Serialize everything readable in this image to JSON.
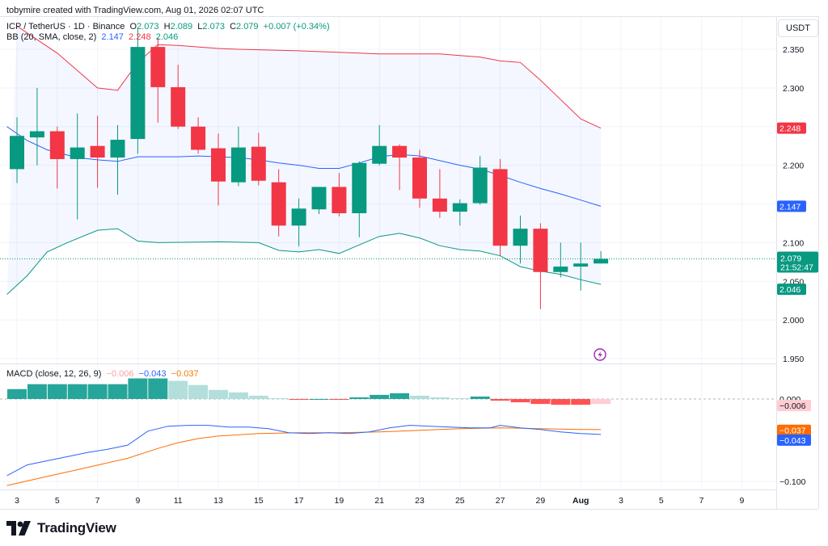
{
  "credit": "tobymire created with TradingView.com, Aug 01, 2026 02:07 UTC",
  "legend": {
    "symbol": "ICP / TetherUS · 1D · Binance",
    "o_label": "O",
    "o": "2.073",
    "h_label": "H",
    "h": "2.089",
    "l_label": "L",
    "l": "2.073",
    "c_label": "C",
    "c": "2.079",
    "change": "+0.007 (+0.34%)",
    "bb_label": "BB (20, SMA, close, 2)",
    "bb_basis": "2.147",
    "bb_upper": "2.248",
    "bb_lower": "2.046",
    "macd_label": "MACD (close, 12, 26, 9)",
    "macd_hist": "−0.006",
    "macd_line": "−0.043",
    "macd_signal": "−0.037"
  },
  "currency": "USDT",
  "brand": "TradingView",
  "icons": {
    "logo": "tradingview-logo-icon",
    "event": "lightning-event-icon"
  },
  "colors": {
    "up": "#089981",
    "down": "#f23645",
    "bb_basis": "#2962ff",
    "bb_upper": "#f23645",
    "bb_lower": "#089981",
    "bb_fill": "#2962ff",
    "macd": "#2962ff",
    "signal": "#ff6d00",
    "hist_up_strong": "#26a69a",
    "hist_up_weak": "#b2dfdb",
    "hist_down_strong": "#ff5252",
    "hist_down_weak": "#ffcdd2",
    "event": "#9c27b0"
  },
  "chart_data": [
    {
      "type": "candlestick",
      "title": "ICP / TetherUS · 1D · Binance",
      "x_ticks": [
        "3",
        "5",
        "7",
        "9",
        "11",
        "13",
        "15",
        "17",
        "19",
        "21",
        "23",
        "25",
        "27",
        "29",
        "Aug",
        "3",
        "5",
        "7",
        "9"
      ],
      "y_ticks": [
        "2.350",
        "2.300",
        "2.250",
        "2.200",
        "2.150",
        "2.100",
        "2.050",
        "2.000",
        "1.950"
      ],
      "ylim": [
        1.945,
        2.385
      ],
      "x_axis_month_label": "Aug",
      "dates": [
        "Jul 3",
        "Jul 4",
        "Jul 5",
        "Jul 6",
        "Jul 7",
        "Jul 8",
        "Jul 9",
        "Jul 10",
        "Jul 11",
        "Jul 12",
        "Jul 13",
        "Jul 14",
        "Jul 15",
        "Jul 16",
        "Jul 17",
        "Jul 18",
        "Jul 19",
        "Jul 20",
        "Jul 21",
        "Jul 22",
        "Jul 23",
        "Jul 24",
        "Jul 25",
        "Jul 26",
        "Jul 27",
        "Jul 28",
        "Jul 29",
        "Jul 30",
        "Jul 31",
        "Aug 1"
      ],
      "candles": [
        {
          "o": 2.195,
          "h": 2.262,
          "l": 2.177,
          "c": 2.238
        },
        {
          "o": 2.236,
          "h": 2.3,
          "l": 2.2,
          "c": 2.244
        },
        {
          "o": 2.244,
          "h": 2.25,
          "l": 2.17,
          "c": 2.208
        },
        {
          "o": 2.208,
          "h": 2.267,
          "l": 2.13,
          "c": 2.223
        },
        {
          "o": 2.225,
          "h": 2.264,
          "l": 2.171,
          "c": 2.21
        },
        {
          "o": 2.21,
          "h": 2.252,
          "l": 2.162,
          "c": 2.233
        },
        {
          "o": 2.234,
          "h": 2.376,
          "l": 2.215,
          "c": 2.353
        },
        {
          "o": 2.353,
          "h": 2.365,
          "l": 2.255,
          "c": 2.301
        },
        {
          "o": 2.301,
          "h": 2.33,
          "l": 2.247,
          "c": 2.25
        },
        {
          "o": 2.25,
          "h": 2.262,
          "l": 2.215,
          "c": 2.22
        },
        {
          "o": 2.222,
          "h": 2.241,
          "l": 2.148,
          "c": 2.179
        },
        {
          "o": 2.178,
          "h": 2.25,
          "l": 2.173,
          "c": 2.223
        },
        {
          "o": 2.224,
          "h": 2.242,
          "l": 2.174,
          "c": 2.18
        },
        {
          "o": 2.178,
          "h": 2.195,
          "l": 2.108,
          "c": 2.122
        },
        {
          "o": 2.122,
          "h": 2.157,
          "l": 2.095,
          "c": 2.144
        },
        {
          "o": 2.143,
          "h": 2.172,
          "l": 2.137,
          "c": 2.172
        },
        {
          "o": 2.172,
          "h": 2.19,
          "l": 2.134,
          "c": 2.138
        },
        {
          "o": 2.138,
          "h": 2.205,
          "l": 2.107,
          "c": 2.203
        },
        {
          "o": 2.202,
          "h": 2.252,
          "l": 2.2,
          "c": 2.225
        },
        {
          "o": 2.225,
          "h": 2.227,
          "l": 2.168,
          "c": 2.21
        },
        {
          "o": 2.21,
          "h": 2.22,
          "l": 2.145,
          "c": 2.157
        },
        {
          "o": 2.157,
          "h": 2.195,
          "l": 2.132,
          "c": 2.14
        },
        {
          "o": 2.14,
          "h": 2.156,
          "l": 2.122,
          "c": 2.151
        },
        {
          "o": 2.151,
          "h": 2.212,
          "l": 2.149,
          "c": 2.197
        },
        {
          "o": 2.195,
          "h": 2.208,
          "l": 2.083,
          "c": 2.096
        },
        {
          "o": 2.096,
          "h": 2.135,
          "l": 2.073,
          "c": 2.118
        },
        {
          "o": 2.118,
          "h": 2.125,
          "l": 2.014,
          "c": 2.062
        },
        {
          "o": 2.062,
          "h": 2.1,
          "l": 2.055,
          "c": 2.069
        },
        {
          "o": 2.069,
          "h": 2.1,
          "l": 2.038,
          "c": 2.073
        },
        {
          "o": 2.073,
          "h": 2.089,
          "l": 2.073,
          "c": 2.079
        }
      ],
      "bollinger": {
        "upper_points": [
          [
            0,
            2.38
          ],
          [
            2,
            2.345
          ],
          [
            4,
            2.3
          ],
          [
            5,
            2.297
          ],
          [
            6,
            2.333
          ],
          [
            7,
            2.356
          ],
          [
            8,
            2.355
          ],
          [
            9,
            2.353
          ],
          [
            10,
            2.351
          ],
          [
            11,
            2.35
          ],
          [
            14,
            2.348
          ],
          [
            16,
            2.346
          ],
          [
            17,
            2.345
          ],
          [
            18,
            2.344
          ],
          [
            19,
            2.344
          ],
          [
            21,
            2.344
          ],
          [
            22,
            2.342
          ],
          [
            23,
            2.34
          ],
          [
            24,
            2.335
          ],
          [
            25,
            2.333
          ],
          [
            26,
            2.31
          ],
          [
            27,
            2.285
          ],
          [
            28,
            2.26
          ],
          [
            29,
            2.248
          ]
        ],
        "basis_points": [
          [
            -0.5,
            2.25
          ],
          [
            0.5,
            2.232
          ],
          [
            1.5,
            2.22
          ],
          [
            3,
            2.21
          ],
          [
            4,
            2.207
          ],
          [
            5,
            2.205
          ],
          [
            6,
            2.211
          ],
          [
            8,
            2.211
          ],
          [
            9,
            2.212
          ],
          [
            10,
            2.211
          ],
          [
            11,
            2.21
          ],
          [
            12,
            2.207
          ],
          [
            13,
            2.203
          ],
          [
            14,
            2.2
          ],
          [
            15,
            2.196
          ],
          [
            16,
            2.196
          ],
          [
            17,
            2.203
          ],
          [
            18,
            2.211
          ],
          [
            19,
            2.214
          ],
          [
            20,
            2.212
          ],
          [
            21,
            2.206
          ],
          [
            22,
            2.2
          ],
          [
            23,
            2.195
          ],
          [
            24,
            2.187
          ],
          [
            25,
            2.178
          ],
          [
            26,
            2.17
          ],
          [
            27,
            2.163
          ],
          [
            28,
            2.155
          ],
          [
            29,
            2.147
          ]
        ],
        "lower_points": [
          [
            -0.5,
            2.033
          ],
          [
            0.5,
            2.057
          ],
          [
            1.5,
            2.088
          ],
          [
            2.5,
            2.1
          ],
          [
            4,
            2.116
          ],
          [
            5,
            2.118
          ],
          [
            6,
            2.102
          ],
          [
            7,
            2.1
          ],
          [
            10,
            2.101
          ],
          [
            12,
            2.1
          ],
          [
            13,
            2.09
          ],
          [
            14,
            2.088
          ],
          [
            15,
            2.091
          ],
          [
            16,
            2.086
          ],
          [
            17,
            2.097
          ],
          [
            18,
            2.108
          ],
          [
            19,
            2.112
          ],
          [
            20,
            2.106
          ],
          [
            21,
            2.096
          ],
          [
            22,
            2.091
          ],
          [
            23,
            2.089
          ],
          [
            24,
            2.083
          ],
          [
            25,
            2.069
          ],
          [
            26,
            2.063
          ],
          [
            27,
            2.059
          ],
          [
            28,
            2.052
          ],
          [
            29,
            2.046
          ]
        ]
      },
      "last_price": 2.079,
      "countdown": "21:52:47",
      "price_labels": [
        {
          "value": "2.248",
          "role": "bb_upper"
        },
        {
          "value": "2.147",
          "role": "bb_basis"
        },
        {
          "value": "2.079",
          "role": "last"
        },
        {
          "value": "2.046",
          "role": "bb_lower"
        }
      ]
    },
    {
      "type": "macd",
      "title": "MACD (close, 12, 26, 9)",
      "y_ticks": [
        "0.000",
        "−0.100"
      ],
      "ylim": [
        -0.112,
        0.022
      ],
      "histogram": [
        0.012,
        0.018,
        0.018,
        0.018,
        0.018,
        0.018,
        0.025,
        0.025,
        0.022,
        0.017,
        0.011,
        0.008,
        0.004,
        0.001,
        -0.001,
        0.0,
        -0.001,
        0.002,
        0.005,
        0.007,
        0.004,
        0.002,
        0.001,
        0.003,
        -0.002,
        -0.004,
        -0.006,
        -0.007,
        -0.007,
        -0.006
      ],
      "macd_points": [
        [
          -0.5,
          -0.093
        ],
        [
          0.5,
          -0.08
        ],
        [
          1.5,
          -0.075
        ],
        [
          2.5,
          -0.07
        ],
        [
          3.5,
          -0.065
        ],
        [
          4.5,
          -0.061
        ],
        [
          5.5,
          -0.056
        ],
        [
          6.5,
          -0.039
        ],
        [
          7.5,
          -0.033
        ],
        [
          8.5,
          -0.032
        ],
        [
          9.5,
          -0.032
        ],
        [
          10.5,
          -0.034
        ],
        [
          11.5,
          -0.034
        ],
        [
          12.5,
          -0.036
        ],
        [
          13.5,
          -0.041
        ],
        [
          14.5,
          -0.042
        ],
        [
          15.5,
          -0.041
        ],
        [
          16.5,
          -0.042
        ],
        [
          17.5,
          -0.04
        ],
        [
          18.5,
          -0.035
        ],
        [
          19.5,
          -0.032
        ],
        [
          20.5,
          -0.033
        ],
        [
          21.5,
          -0.034
        ],
        [
          22.5,
          -0.035
        ],
        [
          23.5,
          -0.035
        ],
        [
          24,
          -0.032
        ],
        [
          25,
          -0.035
        ],
        [
          26,
          -0.037
        ],
        [
          27,
          -0.04
        ],
        [
          28,
          -0.042
        ],
        [
          29,
          -0.043
        ]
      ],
      "signal_points": [
        [
          -0.5,
          -0.105
        ],
        [
          1.5,
          -0.094
        ],
        [
          3.5,
          -0.083
        ],
        [
          5.5,
          -0.072
        ],
        [
          7,
          -0.06
        ],
        [
          8,
          -0.053
        ],
        [
          9,
          -0.048
        ],
        [
          10,
          -0.045
        ],
        [
          12,
          -0.042
        ],
        [
          14,
          -0.041
        ],
        [
          16,
          -0.041
        ],
        [
          18,
          -0.04
        ],
        [
          20,
          -0.038
        ],
        [
          22,
          -0.036
        ],
        [
          24,
          -0.035
        ],
        [
          26,
          -0.036
        ],
        [
          28,
          -0.037
        ],
        [
          29,
          -0.037
        ]
      ],
      "price_labels": [
        {
          "value": "−0.006",
          "role": "histogram"
        },
        {
          "value": "−0.037",
          "role": "signal"
        },
        {
          "value": "−0.043",
          "role": "macd"
        }
      ]
    }
  ]
}
